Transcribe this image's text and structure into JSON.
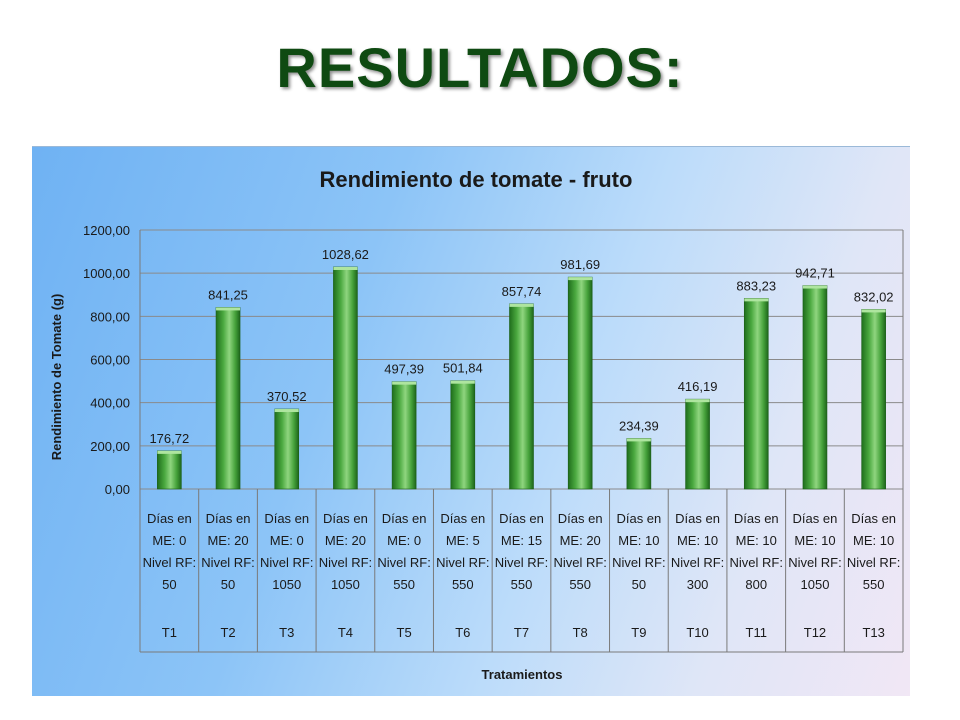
{
  "slide": {
    "title": "RESULTADOS:"
  },
  "chart_data": {
    "type": "bar",
    "title": "Rendimiento de tomate - fruto",
    "xlabel": "Tratamientos",
    "ylabel": "Rendimiento de Tomate (g)",
    "ylim": [
      0,
      1200
    ],
    "yticks": [
      "0,00",
      "200,00",
      "400,00",
      "600,00",
      "800,00",
      "1000,00",
      "1200,00"
    ],
    "grid": true,
    "legend": "none",
    "bar_color": "#3f9a35",
    "categories": [
      {
        "code": "T1",
        "lines": [
          "Días en",
          "ME: 0",
          "Nivel RF:",
          "50"
        ]
      },
      {
        "code": "T2",
        "lines": [
          "Días en",
          "ME: 20",
          "Nivel RF:",
          "50"
        ]
      },
      {
        "code": "T3",
        "lines": [
          "Días en",
          "ME: 0",
          "Nivel RF:",
          "1050"
        ]
      },
      {
        "code": "T4",
        "lines": [
          "Días en",
          "ME: 20",
          "Nivel RF:",
          "1050"
        ]
      },
      {
        "code": "T5",
        "lines": [
          "Días en",
          "ME: 0",
          "Nivel RF:",
          "550"
        ]
      },
      {
        "code": "T6",
        "lines": [
          "Días en",
          "ME: 5",
          "Nivel RF:",
          "550"
        ]
      },
      {
        "code": "T7",
        "lines": [
          "Días en",
          "ME: 15",
          "Nivel RF:",
          "550"
        ]
      },
      {
        "code": "T8",
        "lines": [
          "Días en",
          "ME: 20",
          "Nivel RF:",
          "550"
        ]
      },
      {
        "code": "T9",
        "lines": [
          "Días en",
          "ME: 10",
          "Nivel RF:",
          "50"
        ]
      },
      {
        "code": "T10",
        "lines": [
          "Días en",
          "ME: 10",
          "Nivel RF:",
          "300"
        ]
      },
      {
        "code": "T11",
        "lines": [
          "Días en",
          "ME: 10",
          "Nivel RF:",
          "800"
        ]
      },
      {
        "code": "T12",
        "lines": [
          "Días en",
          "ME: 10",
          "Nivel RF:",
          "1050"
        ]
      },
      {
        "code": "T13",
        "lines": [
          "Días en",
          "ME: 10",
          "Nivel RF:",
          "550"
        ]
      }
    ],
    "values": [
      176.72,
      841.25,
      370.52,
      1028.62,
      497.39,
      501.84,
      857.74,
      981.69,
      234.39,
      416.19,
      883.23,
      942.71,
      832.02
    ],
    "data_labels": [
      "176,72",
      "841,25",
      "370,52",
      "1028,62",
      "497,39",
      "501,84",
      "857,74",
      "981,69",
      "234,39",
      "416,19",
      "883,23",
      "942,71",
      "832,02"
    ]
  }
}
